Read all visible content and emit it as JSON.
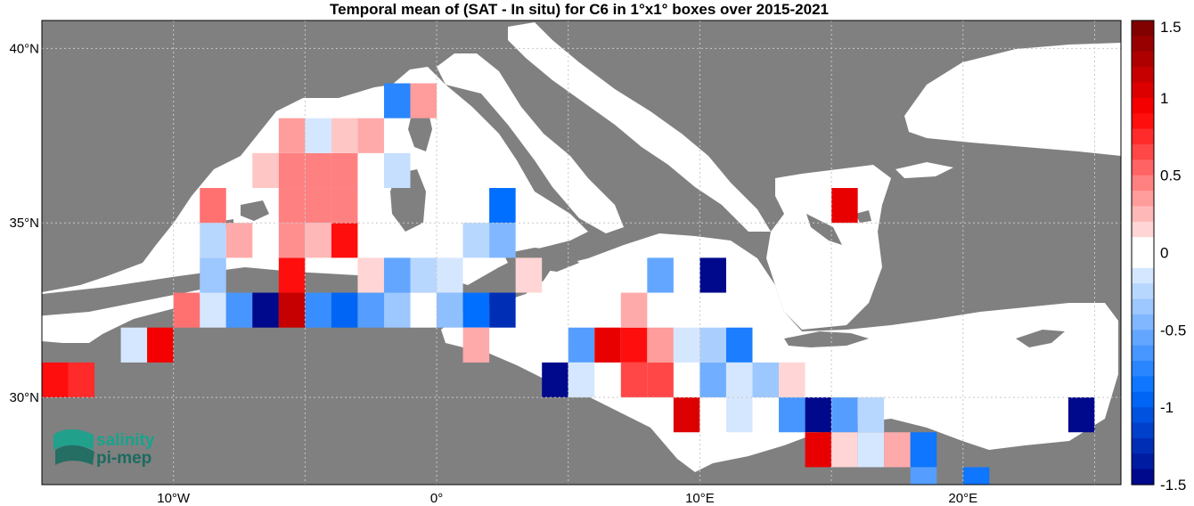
{
  "title": "Temporal mean of (SAT - In situ) for C6 in 1°x1° boxes over 2015-2021",
  "map": {
    "lon_range": [
      -15,
      26
    ],
    "lat_range": [
      27.5,
      40.8
    ],
    "land_color": "#808080",
    "sea_color": "#ffffff",
    "outside_color": "#ffffff",
    "grid": true,
    "lon_ticks": [
      {
        "lon": -10,
        "label": "10°W"
      },
      {
        "lon": 0,
        "label": "0°"
      },
      {
        "lon": 10,
        "label": "10°E"
      },
      {
        "lon": 20,
        "label": "20°E"
      }
    ],
    "lat_ticks": [
      {
        "lat": 40,
        "label": "40°N"
      },
      {
        "lat": 35,
        "label": "35°N"
      },
      {
        "lat": 30,
        "label": "30°N"
      }
    ]
  },
  "colorbar": {
    "range": [
      -1.5,
      1.5
    ],
    "ticks": [
      {
        "value": 1.5,
        "label": "1.5"
      },
      {
        "value": 1,
        "label": "1"
      },
      {
        "value": 0.5,
        "label": "0.5"
      },
      {
        "value": 0,
        "label": "0"
      },
      {
        "value": -0.5,
        "label": "-0.5"
      },
      {
        "value": -1,
        "label": "-1"
      },
      {
        "value": -1.5,
        "label": "-1.5"
      }
    ],
    "steps": 30
  },
  "boxes": [
    {
      "lon": -15,
      "lat": 30,
      "value": 0.85
    },
    {
      "lon": -14,
      "lat": 30,
      "value": 0.75
    },
    {
      "lon": -12,
      "lat": 31,
      "value": -0.15
    },
    {
      "lon": -11,
      "lat": 31,
      "value": 0.95
    },
    {
      "lon": -10,
      "lat": 32,
      "value": 0.5
    },
    {
      "lon": -9,
      "lat": 32,
      "value": -0.15
    },
    {
      "lon": -8,
      "lat": 32,
      "value": -0.65
    },
    {
      "lon": -7,
      "lat": 32,
      "value": -1.45
    },
    {
      "lon": -6,
      "lat": 32,
      "value": 1.15
    },
    {
      "lon": -5,
      "lat": 32,
      "value": -0.7
    },
    {
      "lon": -4,
      "lat": 32,
      "value": -0.95
    },
    {
      "lon": -3,
      "lat": 32,
      "value": -0.6
    },
    {
      "lon": -2,
      "lat": 32,
      "value": -0.35
    },
    {
      "lon": -1,
      "lat": 32,
      "value": -0.05
    },
    {
      "lon": 0,
      "lat": 32,
      "value": -0.4
    },
    {
      "lon": 1,
      "lat": 32,
      "value": -0.9
    },
    {
      "lon": 2,
      "lat": 32,
      "value": -1.25
    },
    {
      "lon": -9,
      "lat": 33,
      "value": -0.35
    },
    {
      "lon": -6,
      "lat": 33,
      "value": 0.85
    },
    {
      "lon": -3,
      "lat": 33,
      "value": 0.15
    },
    {
      "lon": -2,
      "lat": 33,
      "value": -0.55
    },
    {
      "lon": -1,
      "lat": 33,
      "value": -0.25
    },
    {
      "lon": 0,
      "lat": 33,
      "value": -0.15
    },
    {
      "lon": 3,
      "lat": 33,
      "value": 0.15
    },
    {
      "lon": -9,
      "lat": 34,
      "value": -0.25
    },
    {
      "lon": -8,
      "lat": 34,
      "value": 0.3
    },
    {
      "lon": -6,
      "lat": 34,
      "value": 0.4
    },
    {
      "lon": -5,
      "lat": 34,
      "value": 0.25
    },
    {
      "lon": -4,
      "lat": 34,
      "value": 0.85
    },
    {
      "lon": 1,
      "lat": 34,
      "value": -0.25
    },
    {
      "lon": 2,
      "lat": 34,
      "value": -0.45
    },
    {
      "lon": -9,
      "lat": 35,
      "value": 0.5
    },
    {
      "lon": -6,
      "lat": 35,
      "value": 0.45
    },
    {
      "lon": -5,
      "lat": 35,
      "value": 0.45
    },
    {
      "lon": -4,
      "lat": 35,
      "value": 0.45
    },
    {
      "lon": 2,
      "lat": 35,
      "value": -0.9
    },
    {
      "lon": -7,
      "lat": 36,
      "value": 0.2
    },
    {
      "lon": -6,
      "lat": 36,
      "value": 0.45
    },
    {
      "lon": -5,
      "lat": 36,
      "value": 0.45
    },
    {
      "lon": -4,
      "lat": 36,
      "value": 0.45
    },
    {
      "lon": -2,
      "lat": 36,
      "value": -0.2
    },
    {
      "lon": -6,
      "lat": 37,
      "value": 0.35
    },
    {
      "lon": -5,
      "lat": 37,
      "value": -0.15
    },
    {
      "lon": -4,
      "lat": 37,
      "value": 0.2
    },
    {
      "lon": -3,
      "lat": 37,
      "value": 0.3
    },
    {
      "lon": -2,
      "lat": 38,
      "value": -0.75
    },
    {
      "lon": -1,
      "lat": 38,
      "value": 0.35
    },
    {
      "lon": 1,
      "lat": 31,
      "value": 0.3
    },
    {
      "lon": 4,
      "lat": 30,
      "value": -1.45
    },
    {
      "lon": 5,
      "lat": 31,
      "value": -0.6
    },
    {
      "lon": 5,
      "lat": 30,
      "value": -0.15
    },
    {
      "lon": 6,
      "lat": 31,
      "value": 1.0
    },
    {
      "lon": 7,
      "lat": 31,
      "value": 0.85
    },
    {
      "lon": 7,
      "lat": 32,
      "value": 0.3
    },
    {
      "lon": 7,
      "lat": 30,
      "value": 0.65
    },
    {
      "lon": 8,
      "lat": 31,
      "value": 0.35
    },
    {
      "lon": 8,
      "lat": 30,
      "value": 0.65
    },
    {
      "lon": 8,
      "lat": 33,
      "value": -0.55
    },
    {
      "lon": 9,
      "lat": 31,
      "value": -0.15
    },
    {
      "lon": 9,
      "lat": 29,
      "value": 1.05
    },
    {
      "lon": 10,
      "lat": 31,
      "value": -0.3
    },
    {
      "lon": 10,
      "lat": 30,
      "value": -0.5
    },
    {
      "lon": 10,
      "lat": 33,
      "value": -1.45
    },
    {
      "lon": 11,
      "lat": 31,
      "value": -0.8
    },
    {
      "lon": 11,
      "lat": 30,
      "value": -0.15
    },
    {
      "lon": 11,
      "lat": 29,
      "value": -0.15
    },
    {
      "lon": 12,
      "lat": 30,
      "value": -0.35
    },
    {
      "lon": 13,
      "lat": 30,
      "value": 0.15
    },
    {
      "lon": 13,
      "lat": 29,
      "value": -0.65
    },
    {
      "lon": 14,
      "lat": 29,
      "value": -1.45
    },
    {
      "lon": 14,
      "lat": 28,
      "value": 1.0
    },
    {
      "lon": 15,
      "lat": 29,
      "value": -0.6
    },
    {
      "lon": 15,
      "lat": 28,
      "value": 0.15
    },
    {
      "lon": 15,
      "lat": 35,
      "value": 1.0
    },
    {
      "lon": 16,
      "lat": 29,
      "value": -0.25
    },
    {
      "lon": 16,
      "lat": 28,
      "value": -0.15
    },
    {
      "lon": 17,
      "lat": 28,
      "value": 0.3
    },
    {
      "lon": 18,
      "lat": 28,
      "value": -0.85
    },
    {
      "lon": 18,
      "lat": 27,
      "value": -0.6
    },
    {
      "lon": 20,
      "lat": 27,
      "value": -0.85
    },
    {
      "lon": 24,
      "lat": 29,
      "value": -1.45
    }
  ],
  "logo": {
    "line1": "salinity",
    "line2": "pi-mep",
    "color1": "#16a38c",
    "color2": "#1b6b60"
  }
}
